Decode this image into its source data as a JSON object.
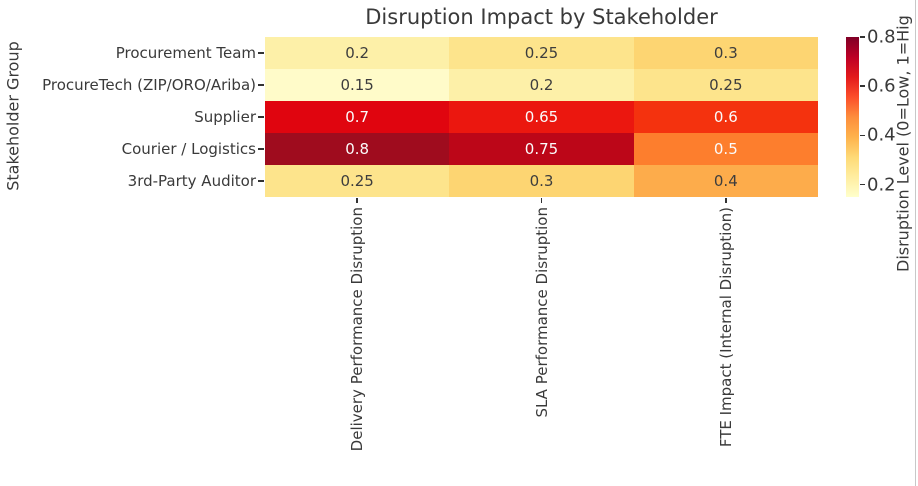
{
  "chart_data": {
    "type": "heatmap",
    "title": "Disruption Impact by Stakeholder",
    "ylabel": "Stakeholder Group",
    "rows": [
      "Procurement Team",
      "ProcureTech (ZIP/ORO/Ariba)",
      "Supplier",
      "Courier / Logistics",
      "3rd-Party Auditor"
    ],
    "columns": [
      "Delivery Performance Disruption",
      "SLA Performance Disruption",
      "FTE Impact (Internal Disruption)"
    ],
    "values": [
      [
        0.2,
        0.25,
        0.3
      ],
      [
        0.15,
        0.2,
        0.25
      ],
      [
        0.7,
        0.65,
        0.6
      ],
      [
        0.8,
        0.75,
        0.5
      ],
      [
        0.25,
        0.3,
        0.4
      ]
    ],
    "colormap": "YlOrRd",
    "grid": false,
    "legend_position": "right-colorbar",
    "colorbar": {
      "label": "Disruption Level (0=Low, 1=Hig",
      "ticks": [
        "0.8",
        "0.6",
        "0.4",
        "0.2"
      ],
      "tick_values": [
        0.8,
        0.6,
        0.4,
        0.2
      ],
      "vmin": 0.15,
      "vmax": 0.8
    }
  },
  "colors": {
    "value_colors": {
      "0.15": "#fffbc9",
      "0.2": "#fdf0a8",
      "0.25": "#fde48c",
      "0.3": "#fdd572",
      "0.4": "#fdac4b",
      "0.5": "#fd7e2d",
      "0.6": "#f4320e",
      "0.65": "#eb170f",
      "0.7": "#e0050f",
      "0.75": "#bc0618",
      "0.8": "#9f0c1e"
    },
    "white_text_min": 0.5,
    "colormap_stops": [
      "#ffffcc",
      "#ffeda0",
      "#fed976",
      "#feb24c",
      "#fd8d3c",
      "#fc4e2a",
      "#e31a1c",
      "#bd0026",
      "#800026"
    ],
    "tick_mark_color": "#333333",
    "text_color": "#3a3a3a",
    "edge_line_color": "#c8c8c8"
  }
}
